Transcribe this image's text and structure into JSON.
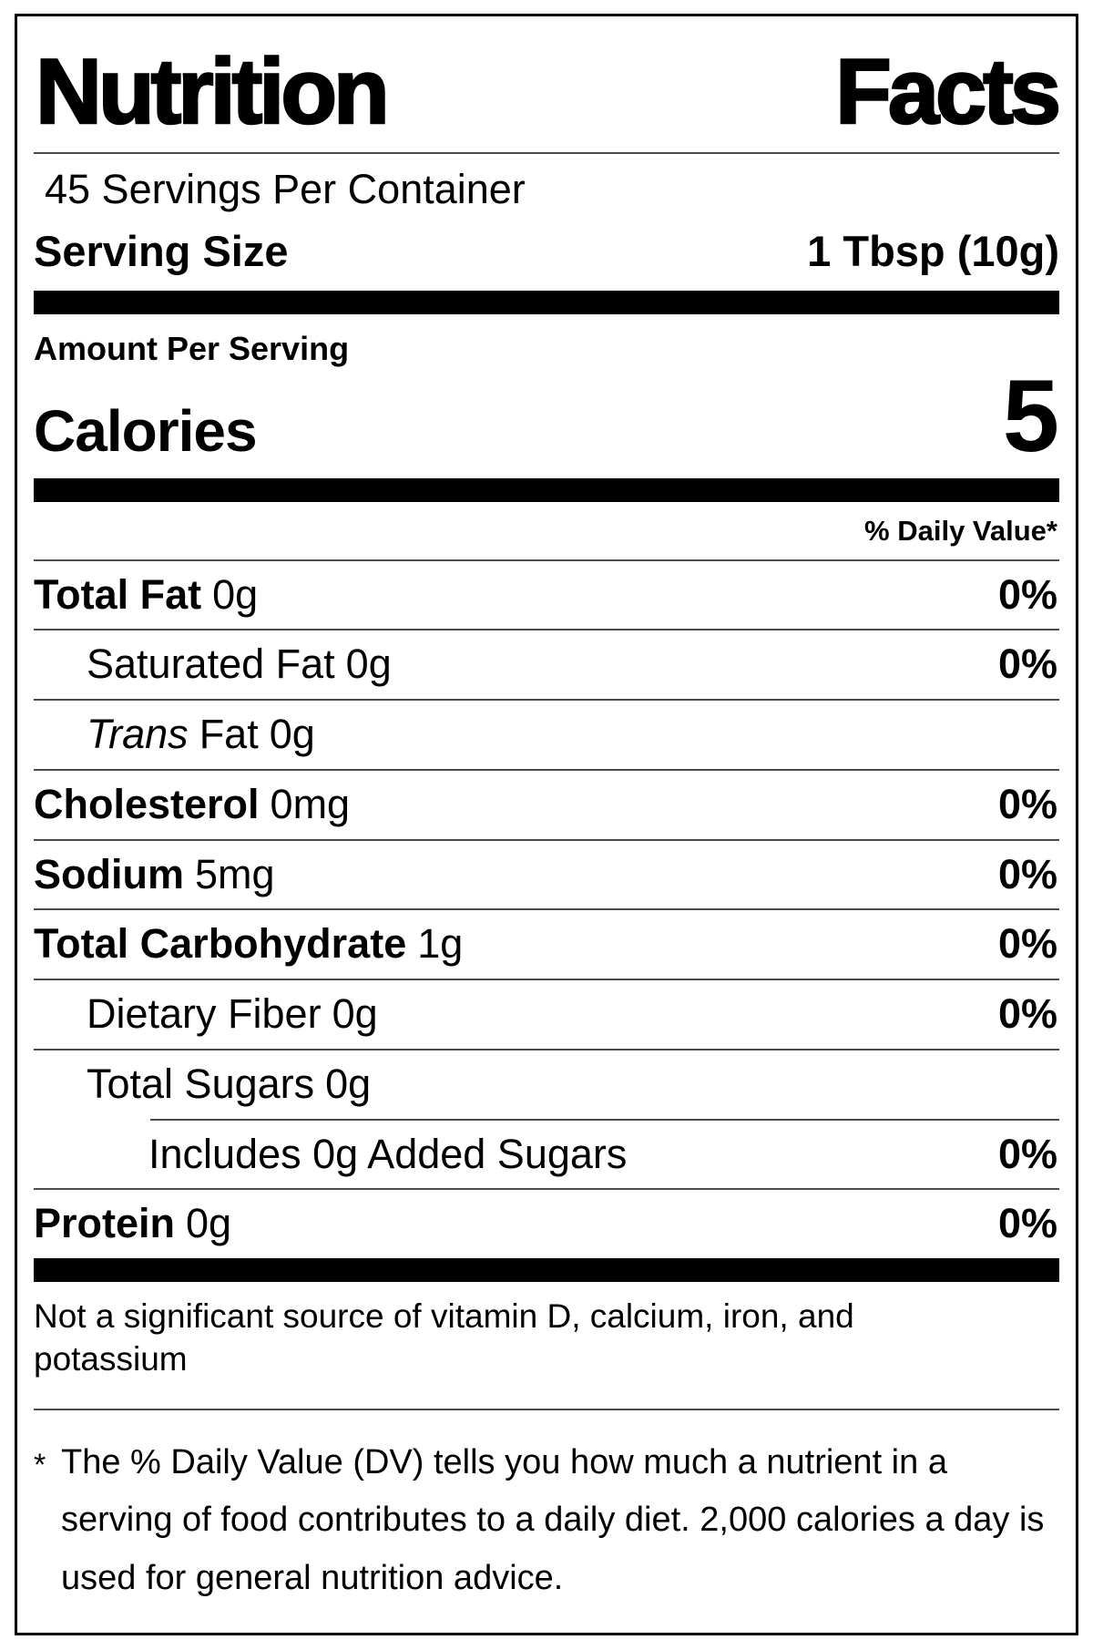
{
  "label": {
    "title": {
      "word1": "Nutrition",
      "word2": "Facts"
    },
    "servings_per_container": "45 Servings Per Container",
    "serving_size": {
      "label": "Serving Size",
      "value": "1 Tbsp (10g)"
    },
    "amount_per_serving": "Amount Per Serving",
    "calories": {
      "label": "Calories",
      "value": "5"
    },
    "daily_value_header": "% Daily Value*",
    "rows": [
      {
        "n": "Total Fat",
        "a": "0g",
        "dv": "0%"
      },
      {
        "n": "Saturated Fat",
        "a": "0g",
        "dv": "0%"
      },
      {
        "it": "Trans",
        "n": "Fat",
        "a": "0g",
        "dv": ""
      },
      {
        "n": "Cholesterol",
        "a": "0mg",
        "dv": "0%"
      },
      {
        "n": "Sodium",
        "a": "5mg",
        "dv": "0%"
      },
      {
        "n": "Total Carbohydrate",
        "a": "1g",
        "dv": "0%"
      },
      {
        "n": "Dietary Fiber",
        "a": "0g",
        "dv": "0%"
      },
      {
        "n": "Total Sugars",
        "a": "0g",
        "dv": ""
      },
      {
        "n": "Includes 0g Added Sugars",
        "a": "",
        "dv": "0%"
      },
      {
        "n": "Protein",
        "a": "0g",
        "dv": "0%"
      }
    ],
    "not_significant_source": "Not a significant source of vitamin D, calcium, iron, and potassium",
    "footnote_marker": "*",
    "footnote": "The % Daily Value (DV) tells you how much a nutrient in a serving of food contributes to a daily diet. 2,000 calories a day is used for general nutrition advice.",
    "colors": {
      "text": "#000000",
      "background": "#ffffff",
      "bar": "#000000",
      "rule": "#4a4a4a"
    }
  }
}
